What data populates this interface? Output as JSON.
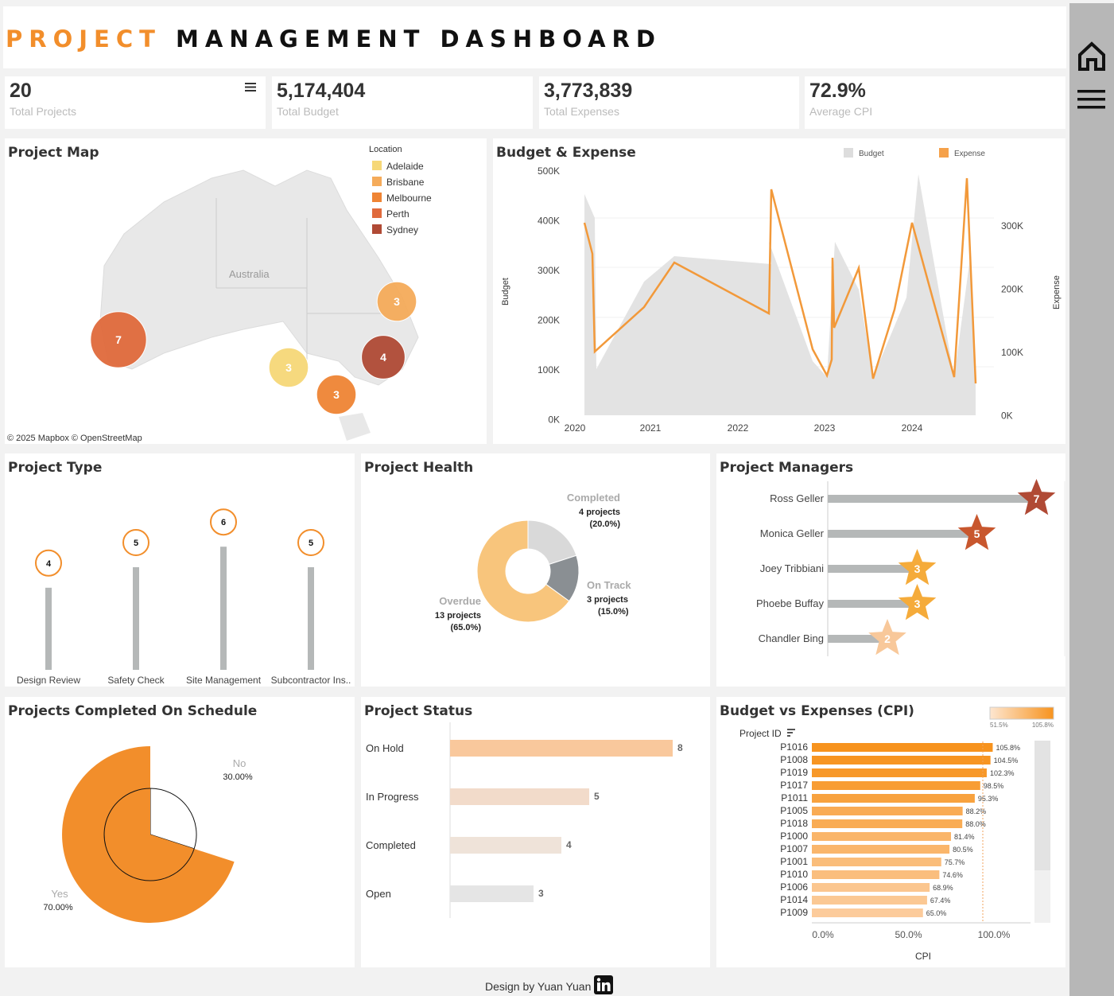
{
  "header": {
    "title_accent": "PROJECT",
    "title_main": "MANAGEMENT DASHBOARD",
    "accent_color": "#f28e2b"
  },
  "kpis": [
    {
      "value": "20",
      "label": "Total Projects"
    },
    {
      "value": "5,174,404",
      "label": "Total Budget"
    },
    {
      "value": "3,773,839",
      "label": "Total Expenses"
    },
    {
      "value": "72.9%",
      "label": "Average CPI"
    }
  ],
  "map": {
    "title": "Project Map",
    "country_label": "Australia",
    "legend_title": "Location",
    "legend": [
      {
        "name": "Adelaide",
        "color": "#f6d878"
      },
      {
        "name": "Brisbane",
        "color": "#f5ab5a"
      },
      {
        "name": "Melbourne",
        "color": "#ef8434"
      },
      {
        "name": "Perth",
        "color": "#e06a3c"
      },
      {
        "name": "Sydney",
        "color": "#b04a35"
      }
    ],
    "bubbles": [
      {
        "label": "7",
        "count": 7,
        "color": "#e06a3c"
      },
      {
        "label": "3",
        "count": 3,
        "color": "#f5ab5a"
      },
      {
        "label": "3",
        "count": 3,
        "color": "#f6d878"
      },
      {
        "label": "4",
        "count": 4,
        "color": "#b04a35"
      },
      {
        "label": "3",
        "count": 3,
        "color": "#ef8434"
      }
    ],
    "attribution": "© 2025 Mapbox  © OpenStreetMap"
  },
  "budget_expense": {
    "title": "Budget & Expense",
    "legend_budget": "Budget",
    "legend_expense": "Expense",
    "y_left_label": "Budget",
    "y_right_label": "Expense",
    "left_ticks": [
      "500K",
      "400K",
      "300K",
      "200K",
      "100K",
      "0K"
    ],
    "right_ticks": [
      "300K",
      "200K",
      "100K",
      "0K"
    ],
    "x_ticks": [
      "2020",
      "2021",
      "2022",
      "2023",
      "2024"
    ]
  },
  "project_type": {
    "title": "Project Type",
    "items": [
      {
        "label": "Design Review",
        "value": 4
      },
      {
        "label": "Safety Check",
        "value": 5
      },
      {
        "label": "Site Management",
        "value": 6
      },
      {
        "label": "Subcontractor Ins..",
        "value": 5
      }
    ]
  },
  "project_health": {
    "title": "Project Health",
    "slices": [
      {
        "name": "Completed",
        "count_text": "4 projects",
        "pct_text": "(20.0%)",
        "value": 20.0,
        "color": "#d9d9d9"
      },
      {
        "name": "On Track",
        "count_text": "3 projects",
        "pct_text": "(15.0%)",
        "value": 15.0,
        "color": "#8a8f93"
      },
      {
        "name": "Overdue",
        "count_text": "13 projects",
        "pct_text": "(65.0%)",
        "value": 65.0,
        "color": "#f8c57c"
      }
    ]
  },
  "project_managers": {
    "title": "Project Managers",
    "items": [
      {
        "name": "Ross Geller",
        "value": 7,
        "color": "#b04a35"
      },
      {
        "name": "Monica Geller",
        "value": 5,
        "color": "#c8572e"
      },
      {
        "name": "Joey Tribbiani",
        "value": 3,
        "color": "#f5ab3a"
      },
      {
        "name": "Phoebe Buffay",
        "value": 3,
        "color": "#f5ab3a"
      },
      {
        "name": "Chandler Bing",
        "value": 2,
        "color": "#f8c89a"
      }
    ]
  },
  "on_schedule": {
    "title": "Projects Completed On Schedule",
    "slices": [
      {
        "name": "No",
        "pct": "30.00%",
        "value": 30
      },
      {
        "name": "Yes",
        "pct": "70.00%",
        "value": 70
      }
    ]
  },
  "project_status": {
    "title": "Project Status",
    "items": [
      {
        "name": "On Hold",
        "value": 8,
        "color": "#f9c89c"
      },
      {
        "name": "In Progress",
        "value": 5,
        "color": "#f2dbca"
      },
      {
        "name": "Completed",
        "value": 4,
        "color": "#efe3d9"
      },
      {
        "name": "Open",
        "value": 3,
        "color": "#e5e5e5"
      }
    ]
  },
  "cpi": {
    "title": "Budget vs Expenses (CPI)",
    "legend_min": "51.5%",
    "legend_max": "105.8%",
    "column_header": "Project ID",
    "x_ticks": [
      "0.0%",
      "50.0%",
      "100.0%"
    ],
    "x_label": "CPI",
    "rows": [
      {
        "id": "P1016",
        "value": 105.8,
        "label": "105.8%"
      },
      {
        "id": "P1008",
        "value": 104.5,
        "label": "104.5%"
      },
      {
        "id": "P1019",
        "value": 102.3,
        "label": "102.3%"
      },
      {
        "id": "P1017",
        "value": 98.5,
        "label": "98.5%"
      },
      {
        "id": "P1011",
        "value": 95.3,
        "label": "95.3%"
      },
      {
        "id": "P1005",
        "value": 88.2,
        "label": "88.2%"
      },
      {
        "id": "P1018",
        "value": 88.0,
        "label": "88.0%"
      },
      {
        "id": "P1000",
        "value": 81.4,
        "label": "81.4%"
      },
      {
        "id": "P1007",
        "value": 80.5,
        "label": "80.5%"
      },
      {
        "id": "P1001",
        "value": 75.7,
        "label": "75.7%"
      },
      {
        "id": "P1010",
        "value": 74.6,
        "label": "74.6%"
      },
      {
        "id": "P1006",
        "value": 68.9,
        "label": "68.9%"
      },
      {
        "id": "P1014",
        "value": 67.4,
        "label": "67.4%"
      },
      {
        "id": "P1009",
        "value": 65.0,
        "label": "65.0%"
      }
    ]
  },
  "footer": {
    "text": "Design by Yuan Yuan",
    "icon": "linkedin-icon"
  },
  "sidebar": {
    "icons": [
      "home-icon",
      "menu-icon"
    ]
  }
}
